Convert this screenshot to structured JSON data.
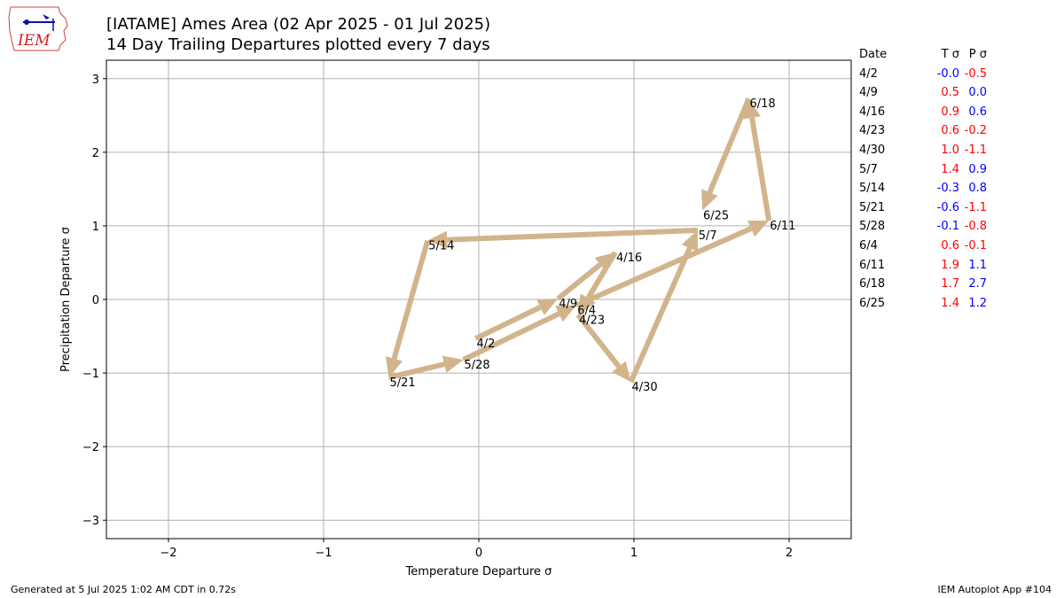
{
  "header": {
    "title_line1": "[IATAME] Ames Area (02 Apr 2025 - 01 Jul 2025)",
    "title_line2": "14 Day Trailing Departures plotted every 7 days"
  },
  "logo": {
    "text": "IEM"
  },
  "footer": {
    "generated": "Generated at 5 Jul 2025 1:02 AM CDT in 0.72s",
    "app": "IEM Autoplot App #104"
  },
  "colors": {
    "arrow": "#d2b48c",
    "positive": "#ff0000",
    "negative": "#0000ff",
    "grid": "#b0b0b0"
  },
  "chart_data": {
    "type": "line",
    "xlabel": "Temperature Departure σ",
    "ylabel": "Precipitation Departure σ",
    "xlim": [
      -2.4,
      2.4
    ],
    "ylim": [
      -3.25,
      3.25
    ],
    "xticks": [
      -2,
      -1,
      0,
      1,
      2
    ],
    "yticks": [
      -3,
      -2,
      -1,
      0,
      1,
      2,
      3
    ],
    "xtick_labels": [
      "−2",
      "−1",
      "0",
      "1",
      "2"
    ],
    "ytick_labels": [
      "−3",
      "−2",
      "−1",
      "0",
      "1",
      "2",
      "3"
    ],
    "grid": true,
    "points": [
      {
        "label": "4/2",
        "x": -0.02,
        "y": -0.53
      },
      {
        "label": "4/9",
        "x": 0.51,
        "y": 0.01
      },
      {
        "label": "4/16",
        "x": 0.88,
        "y": 0.64
      },
      {
        "label": "4/23",
        "x": 0.64,
        "y": -0.21
      },
      {
        "label": "4/30",
        "x": 0.98,
        "y": -1.12
      },
      {
        "label": "5/7",
        "x": 1.41,
        "y": 0.94
      },
      {
        "label": "5/14",
        "x": -0.33,
        "y": 0.8
      },
      {
        "label": "5/21",
        "x": -0.58,
        "y": -1.06
      },
      {
        "label": "5/28",
        "x": -0.1,
        "y": -0.82
      },
      {
        "label": "6/4",
        "x": 0.63,
        "y": -0.08
      },
      {
        "label": "6/11",
        "x": 1.87,
        "y": 1.07
      },
      {
        "label": "6/18",
        "x": 1.74,
        "y": 2.73
      },
      {
        "label": "6/25",
        "x": 1.44,
        "y": 1.21
      }
    ]
  },
  "table": {
    "headers": [
      "Date",
      "T σ",
      "P σ"
    ],
    "rows": [
      {
        "date": "4/2",
        "t": "-0.0",
        "p": "-0.5",
        "t_color": "#0000ff",
        "p_color": "#ff0000"
      },
      {
        "date": "4/9",
        "t": "0.5",
        "p": "0.0",
        "t_color": "#ff0000",
        "p_color": "#0000ff"
      },
      {
        "date": "4/16",
        "t": "0.9",
        "p": "0.6",
        "t_color": "#ff0000",
        "p_color": "#0000ff"
      },
      {
        "date": "4/23",
        "t": "0.6",
        "p": "-0.2",
        "t_color": "#ff0000",
        "p_color": "#ff0000"
      },
      {
        "date": "4/30",
        "t": "1.0",
        "p": "-1.1",
        "t_color": "#ff0000",
        "p_color": "#ff0000"
      },
      {
        "date": "5/7",
        "t": "1.4",
        "p": "0.9",
        "t_color": "#ff0000",
        "p_color": "#0000ff"
      },
      {
        "date": "5/14",
        "t": "-0.3",
        "p": "0.8",
        "t_color": "#0000ff",
        "p_color": "#0000ff"
      },
      {
        "date": "5/21",
        "t": "-0.6",
        "p": "-1.1",
        "t_color": "#0000ff",
        "p_color": "#ff0000"
      },
      {
        "date": "5/28",
        "t": "-0.1",
        "p": "-0.8",
        "t_color": "#0000ff",
        "p_color": "#ff0000"
      },
      {
        "date": "6/4",
        "t": "0.6",
        "p": "-0.1",
        "t_color": "#ff0000",
        "p_color": "#ff0000"
      },
      {
        "date": "6/11",
        "t": "1.9",
        "p": "1.1",
        "t_color": "#ff0000",
        "p_color": "#0000ff"
      },
      {
        "date": "6/18",
        "t": "1.7",
        "p": "2.7",
        "t_color": "#ff0000",
        "p_color": "#0000ff"
      },
      {
        "date": "6/25",
        "t": "1.4",
        "p": "1.2",
        "t_color": "#ff0000",
        "p_color": "#0000ff"
      }
    ]
  }
}
